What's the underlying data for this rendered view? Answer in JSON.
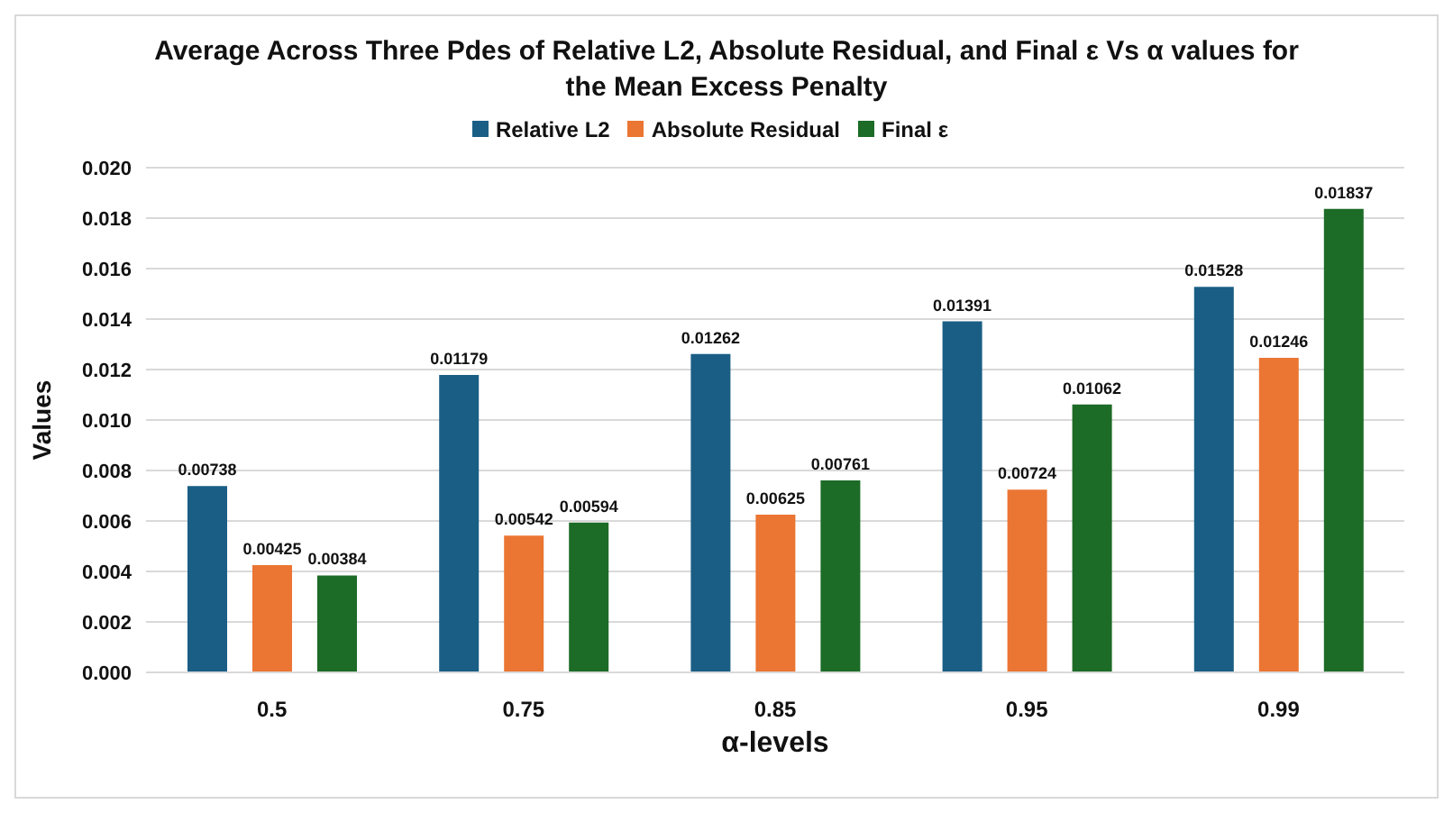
{
  "chart_data": {
    "type": "bar",
    "title": "Average Across Three Pdes of Relative L2, Absolute Residual, and Final ε  Vs α values for the Mean Excess Penalty",
    "xlabel": "α-levels",
    "ylabel": "Values",
    "categories": [
      "0.5",
      "0.75",
      "0.85",
      "0.95",
      "0.99"
    ],
    "series": [
      {
        "name": "Relative L2",
        "color": "#1a5e85",
        "values": [
          0.00738,
          0.01179,
          0.01262,
          0.01391,
          0.01528
        ]
      },
      {
        "name": "Absolute Residual",
        "color": "#eb7533",
        "values": [
          0.00425,
          0.00542,
          0.00625,
          0.00724,
          0.01246
        ]
      },
      {
        "name": "Final ε",
        "color": "#1c6b26",
        "values": [
          0.00384,
          0.00594,
          0.00761,
          0.01062,
          0.01837
        ]
      }
    ],
    "ylim": [
      0,
      0.02
    ],
    "yticks": [
      {
        "value": 0,
        "label": "0.000"
      },
      {
        "value": 0.002,
        "label": "0.002"
      },
      {
        "value": 0.004,
        "label": "0.004"
      },
      {
        "value": 0.006,
        "label": "0.006"
      },
      {
        "value": 0.008,
        "label": "0.008"
      },
      {
        "value": 0.01,
        "label": "0.010"
      },
      {
        "value": 0.012,
        "label": "0.012"
      },
      {
        "value": 0.014,
        "label": "0.014"
      },
      {
        "value": 0.016,
        "label": "0.016"
      },
      {
        "value": 0.018,
        "label": "0.018"
      },
      {
        "value": 0.02,
        "label": "0.020"
      }
    ],
    "grid": "y",
    "legend": "top",
    "data_labels": true
  }
}
